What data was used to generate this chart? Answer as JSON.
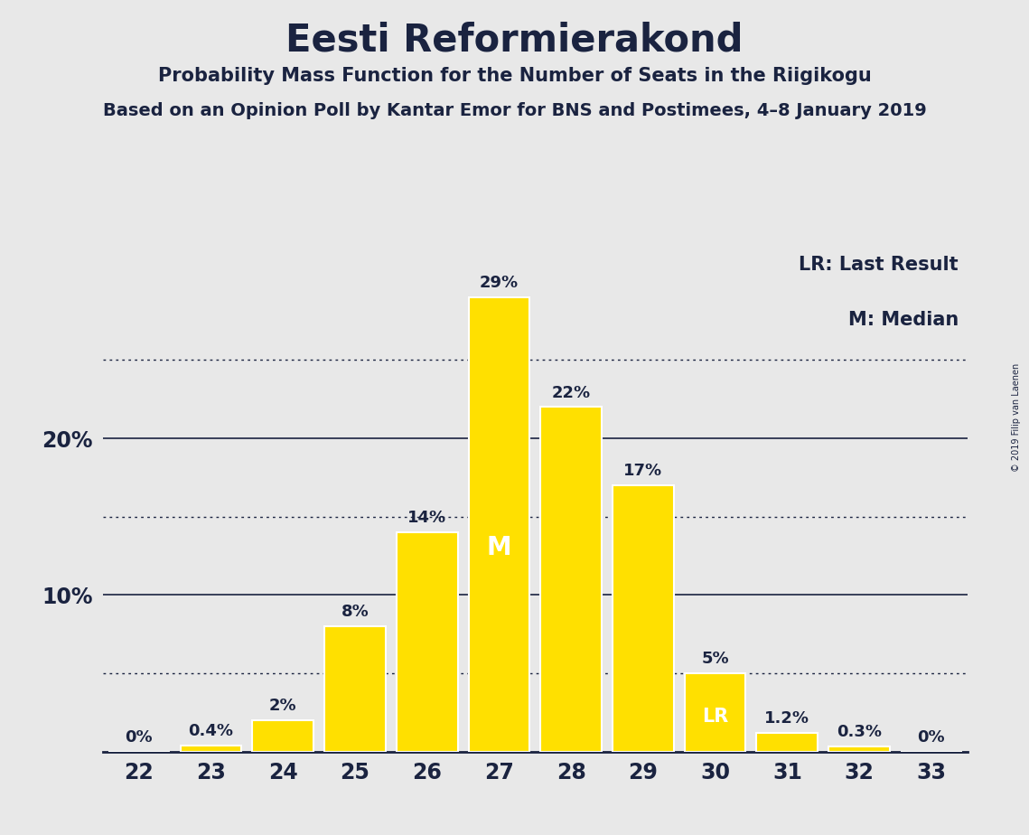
{
  "title": "Eesti Reformierakond",
  "subtitle1": "Probability Mass Function for the Number of Seats in the Riigikogu",
  "subtitle2": "Based on an Opinion Poll by Kantar Emor for BNS and Postimees, 4–8 January 2019",
  "copyright": "© 2019 Filip van Laenen",
  "categories": [
    22,
    23,
    24,
    25,
    26,
    27,
    28,
    29,
    30,
    31,
    32,
    33
  ],
  "values": [
    0.0,
    0.4,
    2.0,
    8.0,
    14.0,
    29.0,
    22.0,
    17.0,
    5.0,
    1.2,
    0.3,
    0.0
  ],
  "bar_color": "#FFE000",
  "bar_edge_color": "#FFFFFF",
  "background_color": "#E8E8E8",
  "text_color": "#1A2340",
  "ylim": [
    0,
    32
  ],
  "median_bar": 27,
  "lr_bar": 30,
  "legend_lr": "LR: Last Result",
  "legend_m": "M: Median",
  "dotted_lines": [
    5,
    15,
    25
  ],
  "solid_lines": [
    10,
    20
  ]
}
